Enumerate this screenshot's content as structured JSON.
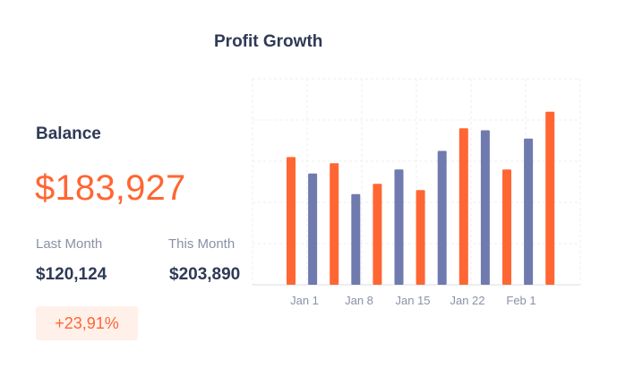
{
  "title": "Profit Growth",
  "balance": {
    "label": "Balance",
    "value": "$183,927"
  },
  "stats": {
    "last_month": {
      "label": "Last Month",
      "value": "$120,124"
    },
    "this_month": {
      "label": "This Month",
      "value": "$203,890"
    }
  },
  "change_badge": "+23,91%",
  "colors": {
    "accent": "#ff6633",
    "secondary": "#6f7aae",
    "text": "#2f3a56",
    "muted": "#8a91a6",
    "badge_bg": "#fff0ea"
  },
  "chart_data": {
    "type": "bar",
    "title": "",
    "xlabel": "",
    "ylabel": "",
    "grid": true,
    "tick_labels": [
      "Jan 1",
      "Jan 8",
      "Jan 15",
      "Jan 22",
      "Feb 1"
    ],
    "ylim": [
      0,
      100
    ],
    "series": [
      {
        "color": "#ff6633",
        "values": [
          62,
          59,
          49,
          46,
          76,
          56,
          84
        ]
      },
      {
        "color": "#6f7aae",
        "values": [
          54,
          44,
          56,
          65,
          75,
          71
        ]
      }
    ]
  }
}
